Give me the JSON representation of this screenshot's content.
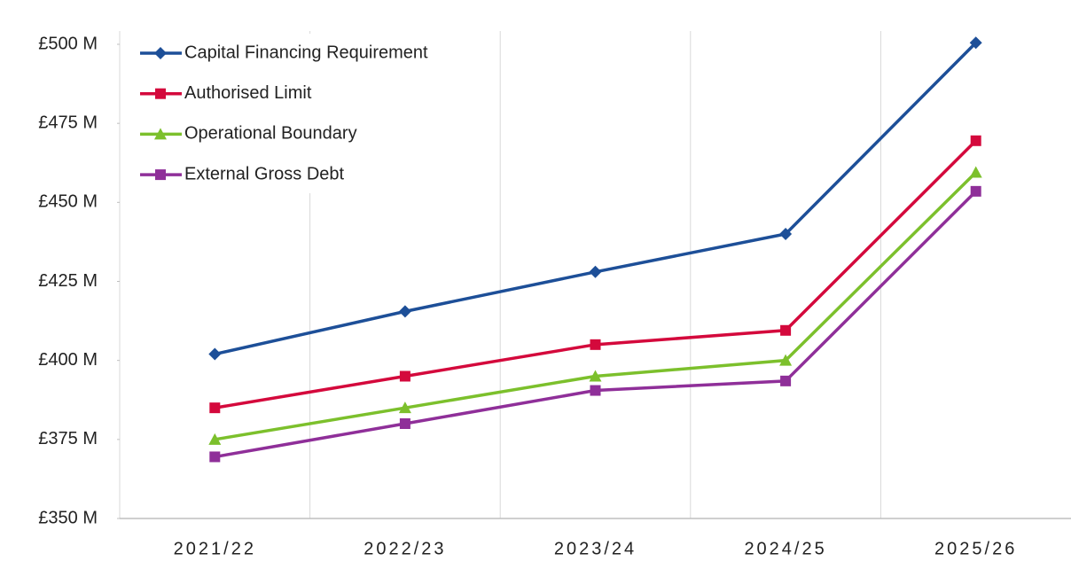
{
  "chart_data": {
    "type": "line",
    "categories": [
      "2021/22",
      "2022/23",
      "2023/24",
      "2024/25",
      "2025/26"
    ],
    "series": [
      {
        "name": "Capital Financing Requirement",
        "color": "#1d4f98",
        "marker": "diamond",
        "values": [
          402,
          415.5,
          428,
          440,
          500.5
        ]
      },
      {
        "name": "Authorised Limit",
        "color": "#d4093c",
        "marker": "square",
        "values": [
          385,
          395,
          405,
          409.5,
          469.5
        ]
      },
      {
        "name": "Operational Boundary",
        "color": "#7cc02c",
        "marker": "triangle",
        "values": [
          375,
          385,
          395,
          400,
          459.5
        ]
      },
      {
        "name": "External Gross Debt",
        "color": "#8f2f99",
        "marker": "square",
        "values": [
          369.5,
          380,
          390.5,
          393.5,
          453.5
        ]
      }
    ],
    "ylim": [
      350,
      500
    ],
    "yticks": [
      {
        "value": 350,
        "label": "£350 M"
      },
      {
        "value": 375,
        "label": "£375 M"
      },
      {
        "value": 400,
        "label": "£400 M"
      },
      {
        "value": 425,
        "label": "£425 M"
      },
      {
        "value": 450,
        "label": "£450 M"
      },
      {
        "value": 475,
        "label": "£475 M"
      },
      {
        "value": 500,
        "label": "£500 M"
      }
    ],
    "grid": "x",
    "legend": "top-left"
  }
}
